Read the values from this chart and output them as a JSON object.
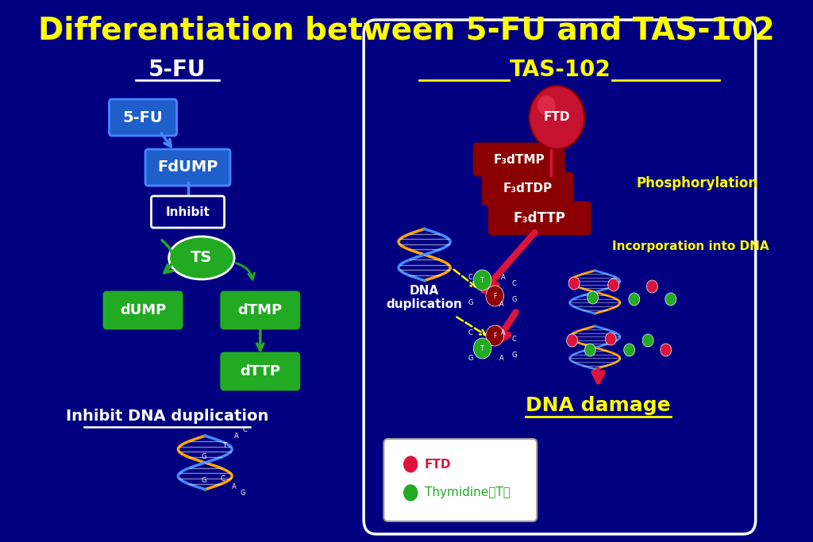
{
  "bg_color": "#000080",
  "title": "Differentiation between 5-FU and TAS-102",
  "title_color": "#FFFF00",
  "title_fontsize": 28,
  "left_title": "5-FU",
  "right_title": "TAS-102",
  "box_5fu_label": "5-FU",
  "box_fdump_label": "FdUMP",
  "box_inhibit_label": "Inhibit",
  "box_ts_label": "TS",
  "box_dump_label": "dUMP",
  "box_dtmp_label": "dTMP",
  "box_dttp_label": "dTTP",
  "left_bottom_label": "Inhibit DNA duplication",
  "ftd_label": "FTD",
  "f3dtmp_label": "F₃dTMP",
  "f3dtdp_label": "F₃dTDP",
  "f3dttp_label": "F₃dTTP",
  "phosphorylation_label": "Phosphorylation",
  "incorporation_label": "Incorporation into DNA",
  "dna_dup_label": "DNA\nduplication",
  "dna_damage_label": "DNA damage",
  "legend_ftd": "FTD",
  "legend_thymidine": "Thymidine（T）",
  "white": "#FFFFFF",
  "yellow": "#FFFF00",
  "orange": "#FFA500",
  "light_blue": "#4488FF"
}
